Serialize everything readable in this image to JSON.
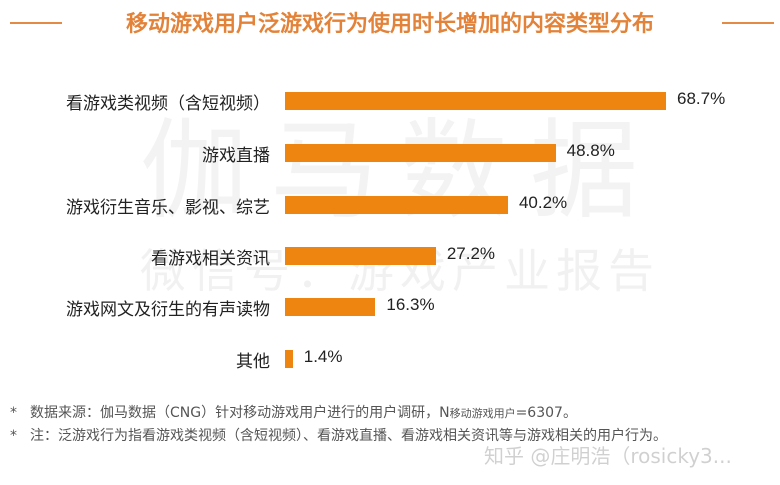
{
  "title": "移动游戏用户泛游戏行为使用时长增加的内容类型分布",
  "watermarks": {
    "brand": "伽马数据",
    "wechat": "微信号：游戏产业报告",
    "zhihu": "知乎 @庄明浩（rosicky3..."
  },
  "colors": {
    "bar": "#EE8510",
    "title": "#E3833A"
  },
  "chart_data": {
    "type": "bar",
    "orientation": "horizontal",
    "title": "移动游戏用户泛游戏行为使用时长增加的内容类型分布",
    "categories": [
      "看游戏类视频（含短视频）",
      "游戏直播",
      "游戏衍生音乐、影视、综艺",
      "看游戏相关资讯",
      "游戏网文及衍生的有声读物",
      "其他"
    ],
    "values": [
      68.7,
      48.8,
      40.2,
      27.2,
      16.3,
      1.4
    ],
    "value_labels": [
      "68.7%",
      "48.8%",
      "40.2%",
      "27.2%",
      "16.3%",
      "1.4%"
    ],
    "xlabel": "",
    "ylabel": "",
    "unit": "%",
    "grid": false,
    "legend": null
  },
  "notes": {
    "source_prefix": "数据来源：伽马数据（CNG）针对移动游戏用户进行的用户调研，N",
    "source_sub": "移动游戏用户",
    "source_suffix": "=6307。",
    "note": "注：泛游戏行为指看游戏类视频（含短视频）、看游戏直播、看游戏相关资讯等与游戏相关的用户行为。",
    "star": "*"
  }
}
